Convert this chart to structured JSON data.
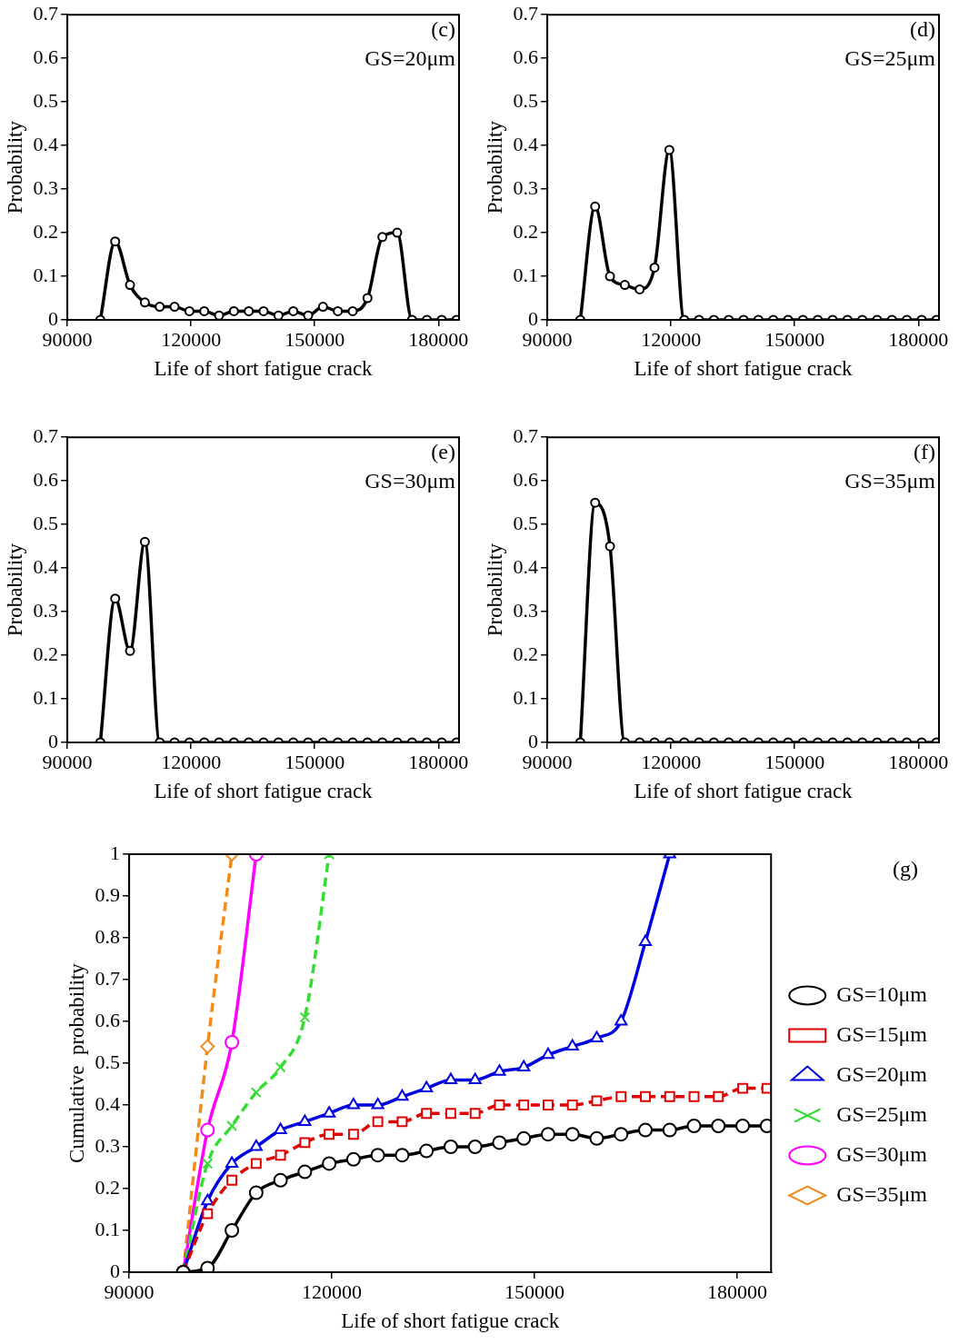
{
  "chart_data": [
    {
      "type": "line",
      "xlabel": "Life of short fatigue crack",
      "ylabel": "Probability",
      "annotations": [
        "(c)",
        "GS=20μm"
      ],
      "xlim": [
        90000,
        185000
      ],
      "xticks": [
        90000,
        120000,
        150000,
        180000
      ],
      "ylim": [
        0,
        0.7
      ],
      "yticks": [
        0,
        0.1,
        0.2,
        0.3,
        0.4,
        0.5,
        0.6,
        0.7
      ],
      "grid": false,
      "legend": false,
      "marker": "circle",
      "line_style": "solid",
      "x": [
        98000,
        101600,
        105200,
        108800,
        112400,
        116000,
        119600,
        123200,
        126800,
        130400,
        134000,
        137600,
        141200,
        144800,
        148400,
        152000,
        155600,
        159200,
        162800,
        166400,
        170000,
        173600,
        177200,
        180800,
        184400
      ],
      "series": [
        {
          "color": "#000000",
          "values": [
            0,
            0.18,
            0.08,
            0.04,
            0.03,
            0.03,
            0.02,
            0.02,
            0.01,
            0.02,
            0.02,
            0.02,
            0.01,
            0.02,
            0.01,
            0.03,
            0.02,
            0.02,
            0.05,
            0.19,
            0.2,
            0,
            0,
            0,
            0
          ]
        }
      ]
    },
    {
      "type": "line",
      "xlabel": "Life of short fatigue crack",
      "ylabel": "Probability",
      "annotations": [
        "(d)",
        "GS=25μm"
      ],
      "xlim": [
        90000,
        185000
      ],
      "xticks": [
        90000,
        120000,
        150000,
        180000
      ],
      "ylim": [
        0,
        0.7
      ],
      "yticks": [
        0,
        0.1,
        0.2,
        0.3,
        0.4,
        0.5,
        0.6,
        0.7
      ],
      "grid": false,
      "legend": false,
      "marker": "circle",
      "line_style": "solid",
      "x": [
        98000,
        101600,
        105200,
        108800,
        112400,
        116000,
        119600,
        123200,
        126800,
        130400,
        134000,
        137600,
        141200,
        144800,
        148400,
        152000,
        155600,
        159200,
        162800,
        166400,
        170000,
        173600,
        177200,
        180800,
        184400
      ],
      "series": [
        {
          "color": "#000000",
          "values": [
            0,
            0.26,
            0.1,
            0.08,
            0.07,
            0.12,
            0.39,
            0,
            0,
            0,
            0,
            0,
            0,
            0,
            0,
            0,
            0,
            0,
            0,
            0,
            0,
            0,
            0,
            0,
            0
          ]
        }
      ]
    },
    {
      "type": "line",
      "xlabel": "Life of short fatigue crack",
      "ylabel": "Probability",
      "annotations": [
        "(e)",
        "GS=30μm"
      ],
      "xlim": [
        90000,
        185000
      ],
      "xticks": [
        90000,
        120000,
        150000,
        180000
      ],
      "ylim": [
        0,
        0.7
      ],
      "yticks": [
        0,
        0.1,
        0.2,
        0.3,
        0.4,
        0.5,
        0.6,
        0.7
      ],
      "grid": false,
      "legend": false,
      "marker": "circle",
      "line_style": "solid",
      "x": [
        98000,
        101600,
        105200,
        108800,
        112400,
        116000,
        119600,
        123200,
        126800,
        130400,
        134000,
        137600,
        141200,
        144800,
        148400,
        152000,
        155600,
        159200,
        162800,
        166400,
        170000,
        173600,
        177200,
        180800,
        184400
      ],
      "series": [
        {
          "color": "#000000",
          "values": [
            0,
            0.33,
            0.21,
            0.46,
            0,
            0,
            0,
            0,
            0,
            0,
            0,
            0,
            0,
            0,
            0,
            0,
            0,
            0,
            0,
            0,
            0,
            0,
            0,
            0,
            0
          ]
        }
      ]
    },
    {
      "type": "line",
      "xlabel": "Life of short fatigue crack",
      "ylabel": "Probability",
      "annotations": [
        "(f)",
        "GS=35μm"
      ],
      "xlim": [
        90000,
        185000
      ],
      "xticks": [
        90000,
        120000,
        150000,
        180000
      ],
      "ylim": [
        0,
        0.7
      ],
      "yticks": [
        0,
        0.1,
        0.2,
        0.3,
        0.4,
        0.5,
        0.6,
        0.7
      ],
      "grid": false,
      "legend": false,
      "marker": "circle",
      "line_style": "solid",
      "x": [
        98000,
        101600,
        105200,
        108800,
        112400,
        116000,
        119600,
        123200,
        126800,
        130400,
        134000,
        137600,
        141200,
        144800,
        148400,
        152000,
        155600,
        159200,
        162800,
        166400,
        170000,
        173600,
        177200,
        180800,
        184400
      ],
      "series": [
        {
          "color": "#000000",
          "values": [
            0,
            0.55,
            0.45,
            0,
            0,
            0,
            0,
            0,
            0,
            0,
            0,
            0,
            0,
            0,
            0,
            0,
            0,
            0,
            0,
            0,
            0,
            0,
            0,
            0,
            0
          ]
        }
      ]
    },
    {
      "type": "line",
      "xlabel": "Life of short fatigue crack",
      "ylabel": "Cumulative  probability",
      "annotations": [
        "(g)"
      ],
      "xlim": [
        90000,
        185000
      ],
      "xticks": [
        90000,
        120000,
        150000,
        180000
      ],
      "ylim": [
        0,
        1
      ],
      "yticks": [
        0,
        0.1,
        0.2,
        0.3,
        0.4,
        0.5,
        0.6,
        0.7,
        0.8,
        0.9,
        1
      ],
      "grid": false,
      "legend": "right",
      "series": [
        {
          "name": "GS=10μm",
          "color": "#000000",
          "marker": "circle",
          "line_style": "solid",
          "x": [
            98000,
            101600,
            105200,
            108800,
            112400,
            116000,
            119600,
            123200,
            126800,
            130400,
            134000,
            137600,
            141200,
            144800,
            148400,
            152000,
            155600,
            159200,
            162800,
            166400,
            170000,
            173600,
            177200,
            180800,
            184400
          ],
          "values": [
            0,
            0.01,
            0.1,
            0.19,
            0.22,
            0.24,
            0.26,
            0.27,
            0.28,
            0.28,
            0.29,
            0.3,
            0.3,
            0.31,
            0.32,
            0.33,
            0.33,
            0.32,
            0.33,
            0.34,
            0.34,
            0.35,
            0.35,
            0.35,
            0.35
          ]
        },
        {
          "name": "GS=15μm",
          "color": "#e00000",
          "marker": "square",
          "line_style": "dashed",
          "x": [
            98000,
            101600,
            105200,
            108800,
            112400,
            116000,
            119600,
            123200,
            126800,
            130400,
            134000,
            137600,
            141200,
            144800,
            148400,
            152000,
            155600,
            159200,
            162800,
            166400,
            170000,
            173600,
            177200,
            180800,
            184400
          ],
          "values": [
            0,
            0.14,
            0.22,
            0.26,
            0.28,
            0.31,
            0.33,
            0.33,
            0.36,
            0.36,
            0.38,
            0.38,
            0.38,
            0.4,
            0.4,
            0.4,
            0.4,
            0.41,
            0.42,
            0.42,
            0.42,
            0.42,
            0.42,
            0.44,
            0.44
          ]
        },
        {
          "name": "GS=20μm",
          "color": "#0000e0",
          "marker": "triangle",
          "line_style": "solid",
          "x": [
            98000,
            101600,
            105200,
            108800,
            112400,
            116000,
            119600,
            123200,
            126800,
            130400,
            134000,
            137600,
            141200,
            144800,
            148400,
            152000,
            155600,
            159200,
            162800,
            166400,
            170000
          ],
          "values": [
            0,
            0.17,
            0.26,
            0.3,
            0.34,
            0.36,
            0.38,
            0.4,
            0.4,
            0.42,
            0.44,
            0.46,
            0.46,
            0.48,
            0.49,
            0.52,
            0.54,
            0.56,
            0.6,
            0.79,
            1
          ]
        },
        {
          "name": "GS=25μm",
          "color": "#33dd33",
          "marker": "cross",
          "line_style": "dashed",
          "x": [
            98000,
            101600,
            105200,
            108800,
            112400,
            116000,
            119600
          ],
          "values": [
            0,
            0.26,
            0.35,
            0.43,
            0.49,
            0.61,
            1
          ]
        },
        {
          "name": "GS=30μm",
          "color": "#ff00ff",
          "marker": "circle",
          "line_style": "solid",
          "x": [
            98000,
            101600,
            105200,
            108800
          ],
          "values": [
            0,
            0.34,
            0.55,
            1
          ]
        },
        {
          "name": "GS=35μm",
          "color": "#f08c1c",
          "marker": "diamond",
          "line_style": "dashed",
          "x": [
            98000,
            101600,
            105200
          ],
          "values": [
            0,
            0.54,
            1
          ]
        }
      ]
    }
  ]
}
